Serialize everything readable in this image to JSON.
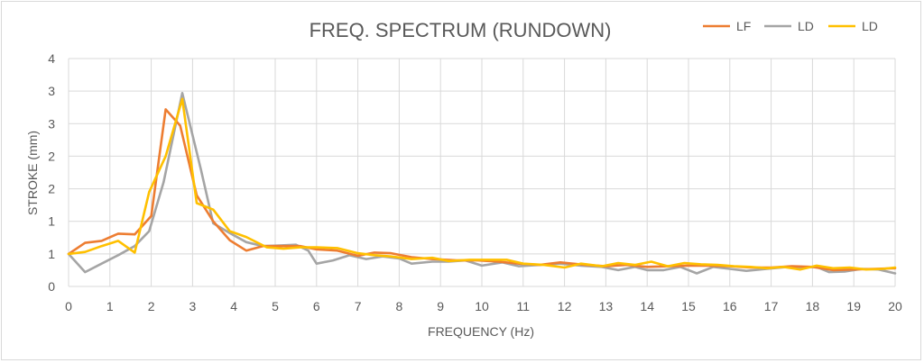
{
  "chart_data": {
    "type": "line",
    "title": "FREQ. SPECTRUM (RUNDOWN)",
    "xlabel": "FREQUENCY (Hz)",
    "ylabel": "STROKE (mm)",
    "xlim": [
      0,
      20
    ],
    "ylim": [
      0,
      3.5
    ],
    "x_ticks": [
      "0",
      "1",
      "2",
      "3",
      "4",
      "5",
      "6",
      "7",
      "8",
      "9",
      "10",
      "11",
      "12",
      "13",
      "14",
      "15",
      "16",
      "17",
      "18",
      "19",
      "20"
    ],
    "y_ticks": [
      {
        "v": 0,
        "label": "0"
      },
      {
        "v": 0.5,
        "label": "1"
      },
      {
        "v": 1.0,
        "label": "1"
      },
      {
        "v": 1.5,
        "label": "2"
      },
      {
        "v": 2.0,
        "label": "2"
      },
      {
        "v": 2.5,
        "label": "3"
      },
      {
        "v": 3.0,
        "label": "3"
      },
      {
        "v": 3.5,
        "label": "4"
      }
    ],
    "grid": true,
    "legend_position": "top-right",
    "series": [
      {
        "name": "LF",
        "color": "#ED7D31",
        "points": [
          [
            0,
            0.5
          ],
          [
            0.4,
            0.67
          ],
          [
            0.8,
            0.7
          ],
          [
            1.2,
            0.81
          ],
          [
            1.6,
            0.8
          ],
          [
            2.0,
            1.08
          ],
          [
            2.35,
            2.72
          ],
          [
            2.7,
            2.47
          ],
          [
            3.1,
            1.4
          ],
          [
            3.5,
            1.0
          ],
          [
            3.9,
            0.71
          ],
          [
            4.3,
            0.55
          ],
          [
            4.7,
            0.62
          ],
          [
            5.2,
            0.62
          ],
          [
            5.6,
            0.62
          ],
          [
            6.0,
            0.57
          ],
          [
            6.5,
            0.55
          ],
          [
            7.0,
            0.47
          ],
          [
            7.4,
            0.52
          ],
          [
            7.8,
            0.51
          ],
          [
            8.3,
            0.45
          ],
          [
            8.8,
            0.42
          ],
          [
            9.4,
            0.4
          ],
          [
            9.9,
            0.4
          ],
          [
            10.4,
            0.38
          ],
          [
            10.9,
            0.35
          ],
          [
            11.4,
            0.33
          ],
          [
            11.9,
            0.37
          ],
          [
            12.5,
            0.33
          ],
          [
            13.0,
            0.31
          ],
          [
            13.5,
            0.33
          ],
          [
            14.0,
            0.3
          ],
          [
            14.5,
            0.31
          ],
          [
            15.0,
            0.32
          ],
          [
            15.5,
            0.32
          ],
          [
            16.0,
            0.31
          ],
          [
            16.5,
            0.29
          ],
          [
            17.0,
            0.29
          ],
          [
            17.5,
            0.31
          ],
          [
            18.0,
            0.3
          ],
          [
            18.5,
            0.25
          ],
          [
            19.0,
            0.26
          ],
          [
            19.5,
            0.27
          ],
          [
            20.0,
            0.28
          ]
        ]
      },
      {
        "name": "LD",
        "color": "#A5A5A5",
        "points": [
          [
            0,
            0.5
          ],
          [
            0.4,
            0.22
          ],
          [
            0.8,
            0.35
          ],
          [
            1.2,
            0.48
          ],
          [
            1.6,
            0.62
          ],
          [
            1.95,
            0.85
          ],
          [
            2.3,
            1.6
          ],
          [
            2.75,
            2.97
          ],
          [
            3.2,
            1.8
          ],
          [
            3.5,
            0.97
          ],
          [
            3.9,
            0.82
          ],
          [
            4.3,
            0.68
          ],
          [
            4.7,
            0.62
          ],
          [
            5.1,
            0.63
          ],
          [
            5.5,
            0.64
          ],
          [
            5.8,
            0.55
          ],
          [
            6.0,
            0.35
          ],
          [
            6.4,
            0.4
          ],
          [
            6.8,
            0.48
          ],
          [
            7.2,
            0.42
          ],
          [
            7.6,
            0.46
          ],
          [
            8.0,
            0.43
          ],
          [
            8.3,
            0.35
          ],
          [
            8.8,
            0.38
          ],
          [
            9.2,
            0.38
          ],
          [
            9.6,
            0.4
          ],
          [
            10.0,
            0.32
          ],
          [
            10.5,
            0.37
          ],
          [
            10.9,
            0.31
          ],
          [
            11.4,
            0.33
          ],
          [
            11.9,
            0.35
          ],
          [
            12.4,
            0.32
          ],
          [
            12.9,
            0.3
          ],
          [
            13.3,
            0.25
          ],
          [
            13.7,
            0.3
          ],
          [
            14.0,
            0.25
          ],
          [
            14.4,
            0.25
          ],
          [
            14.8,
            0.3
          ],
          [
            15.2,
            0.2
          ],
          [
            15.6,
            0.3
          ],
          [
            16.0,
            0.27
          ],
          [
            16.4,
            0.24
          ],
          [
            16.9,
            0.27
          ],
          [
            17.4,
            0.3
          ],
          [
            17.8,
            0.29
          ],
          [
            18.1,
            0.3
          ],
          [
            18.4,
            0.22
          ],
          [
            18.8,
            0.23
          ],
          [
            19.2,
            0.27
          ],
          [
            19.6,
            0.26
          ],
          [
            20.0,
            0.2
          ]
        ]
      },
      {
        "name": "LD",
        "color": "#FFC000",
        "points": [
          [
            0,
            0.5
          ],
          [
            0.4,
            0.53
          ],
          [
            0.8,
            0.62
          ],
          [
            1.2,
            0.7
          ],
          [
            1.6,
            0.52
          ],
          [
            1.95,
            1.45
          ],
          [
            2.35,
            2.0
          ],
          [
            2.75,
            2.88
          ],
          [
            3.1,
            1.28
          ],
          [
            3.5,
            1.18
          ],
          [
            3.9,
            0.85
          ],
          [
            4.3,
            0.76
          ],
          [
            4.8,
            0.6
          ],
          [
            5.2,
            0.58
          ],
          [
            5.6,
            0.6
          ],
          [
            6.0,
            0.6
          ],
          [
            6.5,
            0.59
          ],
          [
            7.0,
            0.51
          ],
          [
            7.4,
            0.48
          ],
          [
            7.8,
            0.46
          ],
          [
            8.3,
            0.42
          ],
          [
            8.8,
            0.44
          ],
          [
            9.2,
            0.39
          ],
          [
            9.7,
            0.41
          ],
          [
            10.2,
            0.41
          ],
          [
            10.6,
            0.41
          ],
          [
            11.0,
            0.35
          ],
          [
            11.5,
            0.33
          ],
          [
            12.0,
            0.29
          ],
          [
            12.4,
            0.35
          ],
          [
            12.9,
            0.31
          ],
          [
            13.3,
            0.36
          ],
          [
            13.7,
            0.33
          ],
          [
            14.1,
            0.38
          ],
          [
            14.5,
            0.31
          ],
          [
            14.9,
            0.36
          ],
          [
            15.3,
            0.34
          ],
          [
            15.7,
            0.33
          ],
          [
            16.1,
            0.31
          ],
          [
            16.5,
            0.3
          ],
          [
            16.9,
            0.28
          ],
          [
            17.3,
            0.3
          ],
          [
            17.7,
            0.26
          ],
          [
            18.1,
            0.32
          ],
          [
            18.5,
            0.28
          ],
          [
            18.9,
            0.29
          ],
          [
            19.3,
            0.26
          ],
          [
            19.7,
            0.27
          ],
          [
            20.0,
            0.29
          ]
        ]
      }
    ]
  }
}
